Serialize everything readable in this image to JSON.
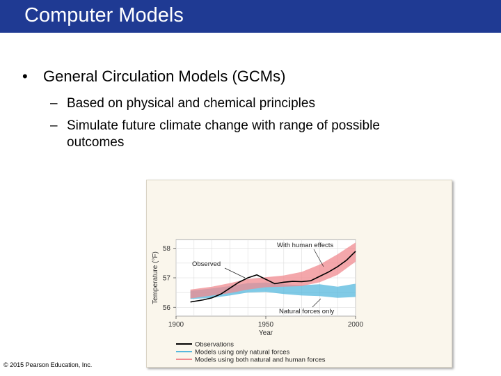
{
  "slide": {
    "title": "Computer Models",
    "bullet": {
      "marker": "•",
      "text": "General Circulation Models (GCMs)"
    },
    "sub_bullets": [
      {
        "marker": "–",
        "text": "Based on physical and chemical principles"
      },
      {
        "marker": "–",
        "text": "Simulate future climate change with range of possible outcomes"
      }
    ],
    "copyright": "© 2015 Pearson Education, Inc."
  },
  "chart_data": {
    "type": "line",
    "title": "",
    "xlabel": "Year",
    "ylabel": "Temperature (°F)",
    "xlim": [
      1900,
      2000
    ],
    "ylim": [
      55.7,
      58.3
    ],
    "x_ticks": [
      1900,
      1950,
      2000
    ],
    "y_ticks": [
      56,
      57,
      58
    ],
    "grid": true,
    "legend_position": "bottom",
    "annotations": [
      "With human effects",
      "Observed",
      "Natural forces only"
    ],
    "series": [
      {
        "name": "Observations",
        "color": "#000000",
        "x": [
          1908,
          1915,
          1920,
          1925,
          1930,
          1935,
          1940,
          1945,
          1950,
          1955,
          1960,
          1965,
          1970,
          1975,
          1980,
          1985,
          1990,
          1995,
          2000
        ],
        "values": [
          56.18,
          56.25,
          56.32,
          56.45,
          56.65,
          56.85,
          57.0,
          57.1,
          56.95,
          56.8,
          56.85,
          56.88,
          56.87,
          56.9,
          57.05,
          57.2,
          57.38,
          57.6,
          57.9
        ]
      },
      {
        "name": "Models using only natural forces",
        "color": "#56b8dd",
        "x": [
          1908,
          1920,
          1930,
          1940,
          1950,
          1960,
          1970,
          1980,
          1990,
          2000
        ],
        "values": [
          56.42,
          56.48,
          56.55,
          56.65,
          56.68,
          56.6,
          56.58,
          56.6,
          56.5,
          56.6
        ],
        "low": [
          56.28,
          56.32,
          56.4,
          56.5,
          56.52,
          56.45,
          56.4,
          56.38,
          56.32,
          56.35
        ],
        "high": [
          56.56,
          56.64,
          56.72,
          56.82,
          56.84,
          56.78,
          56.75,
          56.78,
          56.7,
          56.8
        ]
      },
      {
        "name": "Models using both natural and human forces",
        "color": "#f08a8f",
        "x": [
          1908,
          1920,
          1930,
          1940,
          1950,
          1960,
          1970,
          1980,
          1990,
          2000
        ],
        "values": [
          56.45,
          56.55,
          56.65,
          56.78,
          56.85,
          56.88,
          56.95,
          57.15,
          57.45,
          57.9
        ],
        "low": [
          56.3,
          56.4,
          56.48,
          56.6,
          56.68,
          56.7,
          56.72,
          56.85,
          57.1,
          57.55
        ],
        "high": [
          56.6,
          56.7,
          56.82,
          56.96,
          57.02,
          57.08,
          57.2,
          57.45,
          57.8,
          58.2
        ]
      }
    ]
  }
}
